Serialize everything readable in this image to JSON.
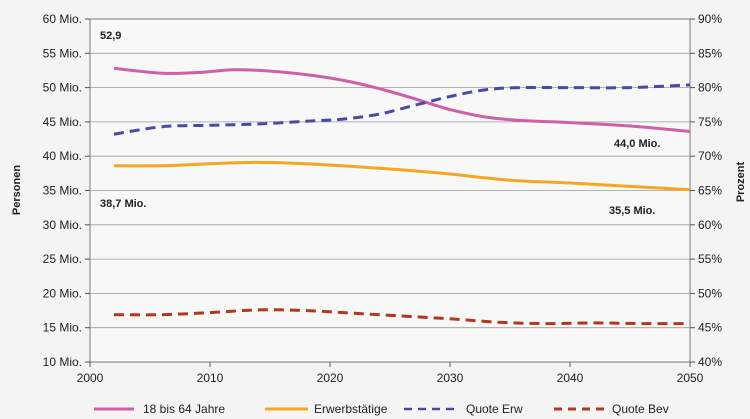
{
  "chart_data": {
    "type": "line",
    "xlim": [
      2000,
      2050
    ],
    "x_ticks": [
      "2000",
      "2010",
      "2020",
      "2030",
      "2040",
      "2050"
    ],
    "ylabel": "Personen",
    "ylim": [
      10,
      60
    ],
    "y_ticks": [
      "10 Mio.",
      "15 Mio.",
      "20 Mio.",
      "25 Mio.",
      "30 Mio.",
      "35 Mio.",
      "40 Mio.",
      "45 Mio.",
      "50 Mio.",
      "55 Mio.",
      "60 Mio."
    ],
    "y2label": "Prozent",
    "y2lim": [
      40,
      90
    ],
    "y2_ticks": [
      "40%",
      "45%",
      "50%",
      "55%",
      "60%",
      "65%",
      "70%",
      "75%",
      "80%",
      "85%",
      "90%"
    ],
    "grid": "horizontal",
    "legend_position": "bottom",
    "series": [
      {
        "name": "18 bis 64 Jahre",
        "axis": "left",
        "color": "#cf5fa6",
        "style": "solid",
        "x": [
          2002,
          2006,
          2009,
          2012,
          2015,
          2018,
          2021,
          2024,
          2027,
          2030,
          2033,
          2036,
          2040,
          2045,
          2050
        ],
        "y": [
          52.8,
          52.1,
          52.2,
          52.6,
          52.4,
          51.9,
          51.1,
          49.9,
          48.4,
          46.8,
          45.7,
          45.2,
          44.9,
          44.4,
          43.6
        ]
      },
      {
        "name": "Erwerbstätige",
        "axis": "left",
        "color": "#f5a623",
        "style": "solid",
        "x": [
          2002,
          2006,
          2010,
          2014,
          2018,
          2022,
          2026,
          2030,
          2035,
          2040,
          2045,
          2050
        ],
        "y": [
          38.6,
          38.6,
          38.9,
          39.1,
          38.9,
          38.5,
          38.0,
          37.4,
          36.5,
          36.1,
          35.6,
          35.1
        ]
      },
      {
        "name": "Quote Erw",
        "axis": "right",
        "color": "#4a4aa6",
        "style": "dashed",
        "x": [
          2002,
          2006,
          2010,
          2014,
          2018,
          2021,
          2024,
          2027,
          2030,
          2033,
          2036,
          2040,
          2045,
          2050
        ],
        "y": [
          73.2,
          74.3,
          74.5,
          74.7,
          75.1,
          75.4,
          76.1,
          77.4,
          78.7,
          79.7,
          80.0,
          80.0,
          80.0,
          80.4
        ]
      },
      {
        "name": "Quote Bev",
        "axis": "right",
        "color": "#b5361f",
        "style": "dashed",
        "x": [
          2002,
          2006,
          2010,
          2014,
          2018,
          2022,
          2026,
          2030,
          2034,
          2038,
          2042,
          2046,
          2050
        ],
        "y": [
          46.9,
          46.9,
          47.2,
          47.6,
          47.5,
          47.1,
          46.7,
          46.3,
          45.8,
          45.6,
          45.7,
          45.6,
          45.6
        ]
      }
    ],
    "annotations": [
      "52,9",
      "38,7 Mio.",
      "44,0 Mio.",
      "35,5 Mio."
    ]
  }
}
